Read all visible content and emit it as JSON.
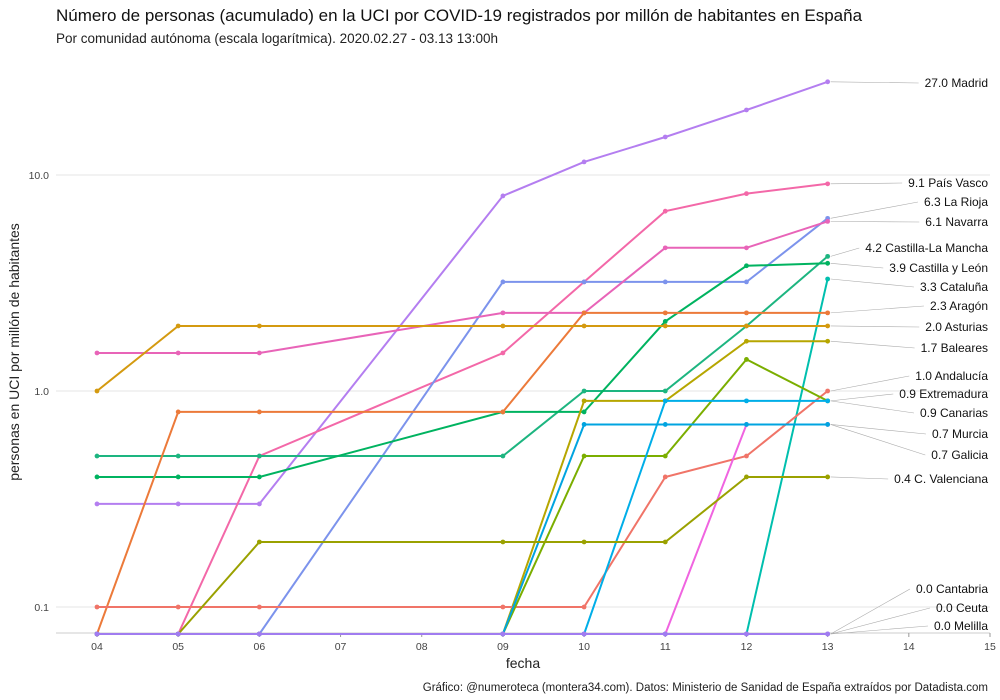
{
  "chart_data": {
    "type": "line",
    "title": "Número de personas (acumulado) en la UCI por COVID-19 registrados por millón de habitantes en España",
    "subtitle": "Por comunidad autónoma (escala logarítmica). 2020.02.27 - 03.13 13:00h",
    "xlabel": "fecha",
    "ylabel": "personas en UCI por millón de habitantes",
    "caption": "Gráfico: @numeroteca (montera34.com). Datos: Ministerio de Sanidad de España extraídos por Datadista.com",
    "y_scale": "log",
    "ylim": [
      0.075,
      30
    ],
    "xlim": [
      4,
      15
    ],
    "x_ticks": [
      {
        "value": 4,
        "label": "04"
      },
      {
        "value": 5,
        "label": "05"
      },
      {
        "value": 6,
        "label": "06"
      },
      {
        "value": 7,
        "label": "07"
      },
      {
        "value": 8,
        "label": "08"
      },
      {
        "value": 9,
        "label": "09"
      },
      {
        "value": 10,
        "label": "10"
      },
      {
        "value": 11,
        "label": "11"
      },
      {
        "value": 12,
        "label": "12"
      },
      {
        "value": 13,
        "label": "13"
      },
      {
        "value": 14,
        "label": "14"
      },
      {
        "value": 15,
        "label": "15"
      }
    ],
    "y_ticks": [
      {
        "value": 0.1,
        "label": "0.1"
      },
      {
        "value": 1,
        "label": "1.0"
      },
      {
        "value": 10,
        "label": "10.0"
      }
    ],
    "grid": true,
    "legend": "end labels on the right",
    "x": [
      4,
      5,
      6,
      9,
      10,
      11,
      12,
      13
    ],
    "series": [
      {
        "name": "Madrid",
        "label": "27.0 Madrid",
        "color": "#b47ef0",
        "values": [
          0.3,
          0.3,
          0.3,
          8.0,
          11.5,
          15.0,
          20.0,
          27.0
        ]
      },
      {
        "name": "País Vasco",
        "label": "9.1 País Vasco",
        "color": "#f368a8",
        "values": [
          0,
          0,
          0.5,
          1.5,
          3.2,
          6.8,
          8.2,
          9.1
        ]
      },
      {
        "name": "La Rioja",
        "label": "6.3 La Rioja",
        "color": "#7c93ec",
        "values": [
          0,
          0,
          0,
          3.2,
          3.2,
          3.2,
          3.2,
          6.3
        ]
      },
      {
        "name": "Navarra",
        "label": "6.1 Navarra",
        "color": "#e864b8",
        "values": [
          1.5,
          1.5,
          1.5,
          2.3,
          2.3,
          4.6,
          4.6,
          6.1
        ]
      },
      {
        "name": "Castilla-La Mancha",
        "label": "4.2 Castilla-La Mancha",
        "color": "#1db580",
        "values": [
          0.5,
          0.5,
          0.5,
          0.5,
          1.0,
          1.0,
          2.0,
          4.2
        ]
      },
      {
        "name": "Castilla y León",
        "label": "3.9 Castilla y León",
        "color": "#00b360",
        "values": [
          0.4,
          0.4,
          0.4,
          0.8,
          0.8,
          2.1,
          3.8,
          3.9
        ]
      },
      {
        "name": "Cataluña",
        "label": "3.3 Cataluña",
        "color": "#00bfae",
        "values": [
          0,
          0,
          0,
          0,
          0,
          0,
          0,
          3.3
        ]
      },
      {
        "name": "Aragón",
        "label": "2.3 Aragón",
        "color": "#ec7a3a",
        "values": [
          0,
          0.8,
          0.8,
          0.8,
          2.3,
          2.3,
          2.3,
          2.3
        ]
      },
      {
        "name": "Asturias",
        "label": "2.0 Asturias",
        "color": "#d49a10",
        "values": [
          1.0,
          2.0,
          2.0,
          2.0,
          2.0,
          2.0,
          2.0,
          2.0
        ]
      },
      {
        "name": "Baleares",
        "label": "1.7 Baleares",
        "color": "#b6a600",
        "values": [
          0,
          0,
          0,
          0,
          0.9,
          0.9,
          1.7,
          1.7
        ]
      },
      {
        "name": "Andalucía",
        "label": "1.0 Andalucía",
        "color": "#f07468",
        "values": [
          0.1,
          0.1,
          0.1,
          0.1,
          0.1,
          0.4,
          0.5,
          1.0
        ]
      },
      {
        "name": "Extremadura",
        "label": "0.9 Extremadura",
        "color": "#7bae00",
        "values": [
          0,
          0,
          0,
          0,
          0.5,
          0.5,
          1.4,
          0.9
        ]
      },
      {
        "name": "Canarias",
        "label": "0.9 Canarias",
        "color": "#00aee8",
        "values": [
          0,
          0,
          0,
          0,
          0,
          0.9,
          0.9,
          0.9
        ]
      },
      {
        "name": "Murcia",
        "label": "0.7 Murcia",
        "color": "#f064e0",
        "values": [
          0,
          0,
          0,
          0,
          0,
          0,
          0.7,
          0.7
        ]
      },
      {
        "name": "Galicia",
        "label": "0.7 Galicia",
        "color": "#00a4e0",
        "values": [
          0,
          0,
          0,
          0,
          0.7,
          0.7,
          0.7,
          0.7
        ]
      },
      {
        "name": "C. Valenciana",
        "label": "0.4 C. Valenciana",
        "color": "#9aa100",
        "values": [
          0,
          0,
          0.2,
          0.2,
          0.2,
          0.2,
          0.4,
          0.4
        ]
      },
      {
        "name": "Cantabria",
        "label": "0.0 Cantabria",
        "color": "#a07cf0",
        "values": [
          0,
          0,
          0,
          0,
          0,
          0,
          0,
          0
        ]
      },
      {
        "name": "Ceuta",
        "label": "0.0 Ceuta",
        "color": "#a07cf0",
        "values": [
          0,
          0,
          0,
          0,
          0,
          0,
          0,
          0
        ]
      },
      {
        "name": "Melilla",
        "label": "0.0 Melilla",
        "color": "#a07cf0",
        "values": [
          0,
          0,
          0,
          0,
          0,
          0,
          0,
          0
        ]
      }
    ]
  }
}
